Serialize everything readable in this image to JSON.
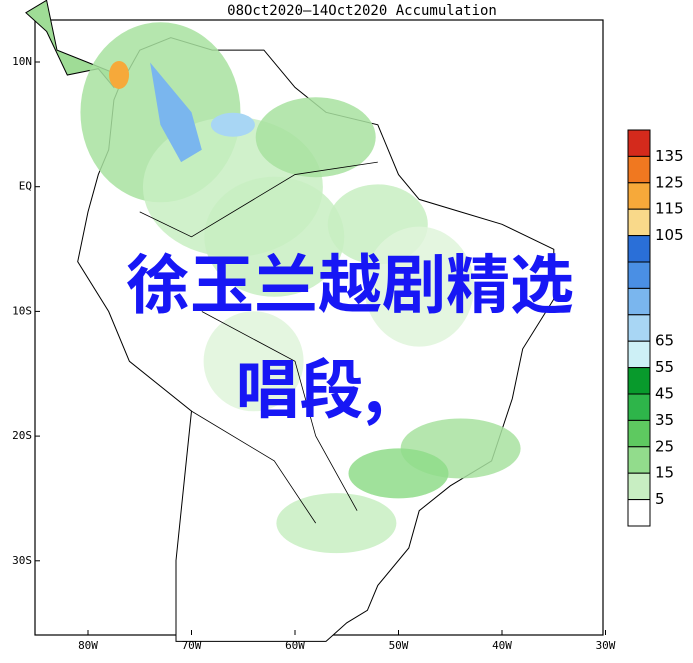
{
  "title": "08Oct2020—14Oct2020 Accumulation",
  "lat_labels": [
    "10N",
    "EQ",
    "10S",
    "20S",
    "30S"
  ],
  "lon_labels": [
    "80W",
    "70W",
    "60W",
    "50W",
    "40W",
    "30W"
  ],
  "colorbar": {
    "labels": [
      "135",
      "125",
      "115",
      "105",
      "65",
      "55",
      "45",
      "35",
      "25",
      "15",
      "5"
    ],
    "colors": [
      "#d42a1c",
      "#f07820",
      "#f6a93a",
      "#f9d98a",
      "#2a6fd8",
      "#4a8fe4",
      "#7ab6ee",
      "#a8d6f4",
      "#cdf0f6",
      "#089a2c",
      "#2eb54a",
      "#5ec960",
      "#92dc8c",
      "#c8eec2",
      "#ffffff"
    ]
  },
  "overlay": {
    "line1": "徐玉兰越剧精选",
    "line2": "唱段,"
  }
}
